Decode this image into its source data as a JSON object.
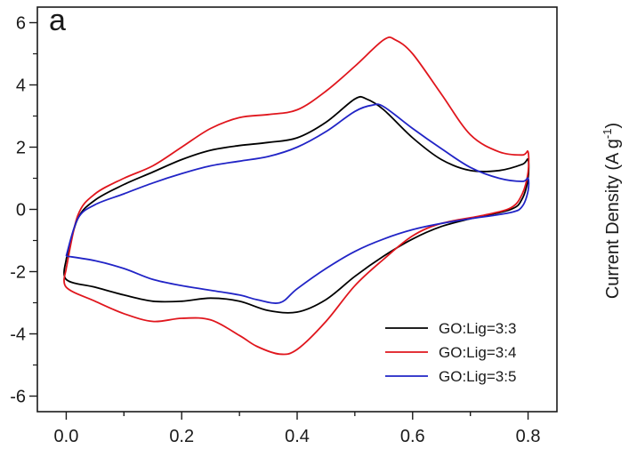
{
  "chart_data": {
    "type": "line",
    "panel_label": "a",
    "title": "",
    "xlabel": "",
    "ylabel": "Current Density (A g",
    "ylabel_superscript": "-1",
    "ylabel_suffix": ")",
    "xlim": [
      -0.05,
      0.85
    ],
    "ylim": [
      -6.5,
      6.5
    ],
    "x_ticks": [
      0.0,
      0.2,
      0.4,
      0.6,
      0.8
    ],
    "x_tick_labels": [
      "0.0",
      "0.2",
      "0.4",
      "0.6",
      "0.8"
    ],
    "y_ticks": [
      -6,
      -4,
      -2,
      0,
      2,
      4,
      6
    ],
    "y_tick_labels": [
      "-6",
      "-4",
      "-2",
      "0",
      "2",
      "4",
      "6"
    ],
    "grid": false,
    "legend_position": "bottom-right",
    "series": [
      {
        "name": "GO:Lig=3:3",
        "color": "#000000",
        "points": [
          [
            0.0,
            -1.6
          ],
          [
            0.02,
            -0.3
          ],
          [
            0.05,
            0.3
          ],
          [
            0.1,
            0.8
          ],
          [
            0.15,
            1.2
          ],
          [
            0.2,
            1.6
          ],
          [
            0.25,
            1.9
          ],
          [
            0.3,
            2.05
          ],
          [
            0.35,
            2.15
          ],
          [
            0.4,
            2.3
          ],
          [
            0.45,
            2.8
          ],
          [
            0.5,
            3.55
          ],
          [
            0.52,
            3.55
          ],
          [
            0.55,
            3.2
          ],
          [
            0.6,
            2.3
          ],
          [
            0.65,
            1.6
          ],
          [
            0.7,
            1.25
          ],
          [
            0.75,
            1.25
          ],
          [
            0.79,
            1.45
          ],
          [
            0.8,
            1.6
          ],
          [
            0.8,
            1.0
          ],
          [
            0.79,
            0.35
          ],
          [
            0.77,
            0.0
          ],
          [
            0.7,
            -0.3
          ],
          [
            0.65,
            -0.55
          ],
          [
            0.6,
            -0.95
          ],
          [
            0.55,
            -1.5
          ],
          [
            0.5,
            -2.15
          ],
          [
            0.45,
            -2.9
          ],
          [
            0.4,
            -3.3
          ],
          [
            0.35,
            -3.25
          ],
          [
            0.3,
            -2.95
          ],
          [
            0.25,
            -2.85
          ],
          [
            0.2,
            -2.95
          ],
          [
            0.15,
            -2.95
          ],
          [
            0.1,
            -2.75
          ],
          [
            0.05,
            -2.5
          ],
          [
            0.0,
            -2.25
          ],
          [
            0.0,
            -1.6
          ]
        ]
      },
      {
        "name": "GO:Lig=3:4",
        "color": "#e0161d",
        "points": [
          [
            0.0,
            -1.9
          ],
          [
            0.02,
            -0.2
          ],
          [
            0.05,
            0.5
          ],
          [
            0.1,
            1.0
          ],
          [
            0.15,
            1.4
          ],
          [
            0.2,
            2.0
          ],
          [
            0.25,
            2.6
          ],
          [
            0.3,
            2.95
          ],
          [
            0.35,
            3.05
          ],
          [
            0.4,
            3.2
          ],
          [
            0.45,
            3.8
          ],
          [
            0.5,
            4.6
          ],
          [
            0.55,
            5.45
          ],
          [
            0.57,
            5.45
          ],
          [
            0.6,
            5.0
          ],
          [
            0.65,
            3.7
          ],
          [
            0.7,
            2.4
          ],
          [
            0.75,
            1.85
          ],
          [
            0.79,
            1.75
          ],
          [
            0.8,
            1.85
          ],
          [
            0.8,
            1.2
          ],
          [
            0.79,
            0.5
          ],
          [
            0.77,
            0.05
          ],
          [
            0.72,
            -0.2
          ],
          [
            0.65,
            -0.45
          ],
          [
            0.6,
            -0.85
          ],
          [
            0.55,
            -1.6
          ],
          [
            0.5,
            -2.45
          ],
          [
            0.45,
            -3.6
          ],
          [
            0.4,
            -4.5
          ],
          [
            0.37,
            -4.65
          ],
          [
            0.33,
            -4.4
          ],
          [
            0.3,
            -4.05
          ],
          [
            0.25,
            -3.55
          ],
          [
            0.2,
            -3.5
          ],
          [
            0.15,
            -3.6
          ],
          [
            0.1,
            -3.35
          ],
          [
            0.05,
            -2.95
          ],
          [
            0.0,
            -2.5
          ],
          [
            0.0,
            -1.9
          ]
        ]
      },
      {
        "name": "GO:Lig=3:5",
        "color": "#2124c6",
        "points": [
          [
            0.0,
            -1.5
          ],
          [
            0.02,
            -0.3
          ],
          [
            0.05,
            0.15
          ],
          [
            0.1,
            0.5
          ],
          [
            0.15,
            0.85
          ],
          [
            0.2,
            1.15
          ],
          [
            0.25,
            1.4
          ],
          [
            0.3,
            1.55
          ],
          [
            0.35,
            1.7
          ],
          [
            0.4,
            2.0
          ],
          [
            0.45,
            2.5
          ],
          [
            0.5,
            3.15
          ],
          [
            0.53,
            3.35
          ],
          [
            0.55,
            3.3
          ],
          [
            0.6,
            2.6
          ],
          [
            0.65,
            1.95
          ],
          [
            0.7,
            1.35
          ],
          [
            0.75,
            1.0
          ],
          [
            0.79,
            0.9
          ],
          [
            0.8,
            1.0
          ],
          [
            0.8,
            0.6
          ],
          [
            0.79,
            0.1
          ],
          [
            0.77,
            -0.1
          ],
          [
            0.7,
            -0.3
          ],
          [
            0.65,
            -0.45
          ],
          [
            0.6,
            -0.65
          ],
          [
            0.55,
            -0.95
          ],
          [
            0.5,
            -1.35
          ],
          [
            0.45,
            -1.9
          ],
          [
            0.4,
            -2.55
          ],
          [
            0.37,
            -3.0
          ],
          [
            0.33,
            -2.9
          ],
          [
            0.3,
            -2.75
          ],
          [
            0.25,
            -2.6
          ],
          [
            0.2,
            -2.45
          ],
          [
            0.15,
            -2.25
          ],
          [
            0.1,
            -1.9
          ],
          [
            0.05,
            -1.65
          ],
          [
            0.0,
            -1.5
          ]
        ]
      }
    ]
  }
}
